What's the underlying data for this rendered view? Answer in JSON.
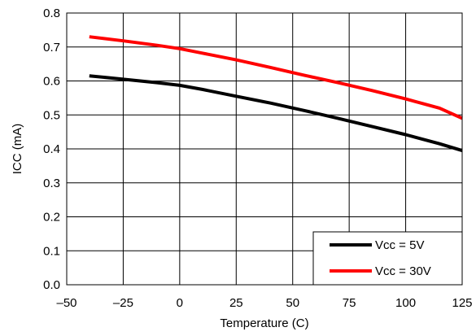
{
  "chart_data": {
    "type": "line",
    "title": "",
    "xlabel": "Temperature (C)",
    "ylabel": "ICC  (mA)",
    "xlim": [
      -50,
      125
    ],
    "ylim": [
      0.0,
      0.8
    ],
    "xticks": [
      -50,
      -25,
      0,
      25,
      50,
      75,
      100,
      125
    ],
    "yticks": [
      0.0,
      0.1,
      0.2,
      0.3,
      0.4,
      0.5,
      0.6,
      0.7,
      0.8
    ],
    "xtick_labels": [
      "–50",
      "–25",
      "0",
      "25",
      "50",
      "75",
      "100",
      "125"
    ],
    "ytick_labels": [
      "0.0",
      "0.1",
      "0.2",
      "0.3",
      "0.4",
      "0.5",
      "0.6",
      "0.7",
      "0.8"
    ],
    "grid": true,
    "legend_position": "bottom-right",
    "series": [
      {
        "name": "Vcc = 5V",
        "color": "#000000",
        "x": [
          -40,
          -25,
          -10,
          0,
          10,
          25,
          40,
          55,
          70,
          85,
          100,
          115,
          125
        ],
        "y": [
          0.615,
          0.605,
          0.595,
          0.587,
          0.575,
          0.555,
          0.535,
          0.513,
          0.49,
          0.466,
          0.442,
          0.415,
          0.395
        ]
      },
      {
        "name": "Vcc = 30V",
        "color": "#ff0000",
        "x": [
          -40,
          -25,
          -10,
          0,
          10,
          25,
          40,
          55,
          70,
          85,
          100,
          115,
          125
        ],
        "y": [
          0.73,
          0.718,
          0.705,
          0.695,
          0.682,
          0.662,
          0.64,
          0.617,
          0.595,
          0.572,
          0.547,
          0.52,
          0.49
        ]
      }
    ]
  }
}
